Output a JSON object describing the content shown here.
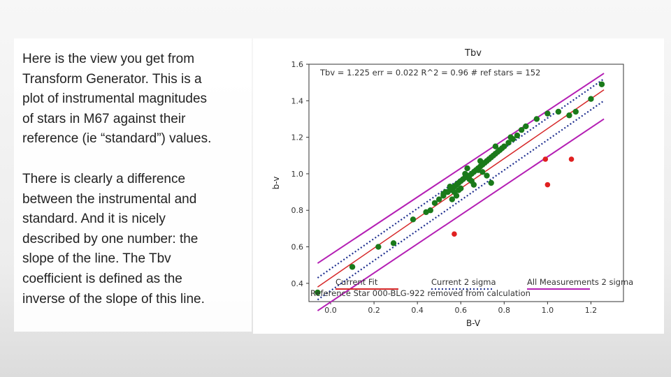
{
  "slide": {
    "paragraph_1": "Here is the view you get from\nTransform Generator. This is a\nplot of instrumental magnitudes\nof stars in M67 against their\nreference (ie “standard”) values.",
    "paragraph_2": "There is clearly a difference\nbetween the instrumental and\nstandard. And it is nicely\ndescribed by one number: the\nslope of the line. The Tbv\ncoefficient is defined as the\ninverse of the slope of this line."
  },
  "chart_data": {
    "type": "scatter",
    "title": "Tbv",
    "stats_annotation": "Tbv =  1.225 err = 0.022  R^2 = 0.96  # ref stars = 152",
    "xlabel": "B-V",
    "ylabel": "b-v",
    "xlim": [
      -0.1,
      1.35
    ],
    "ylim": [
      0.3,
      1.6
    ],
    "xticks": [
      "0.0",
      "0.2",
      "0.4",
      "0.6",
      "0.8",
      "1.0",
      "1.2"
    ],
    "yticks": [
      "0.4",
      "0.6",
      "0.8",
      "1.0",
      "1.2",
      "1.4",
      "1.6"
    ],
    "grid": false,
    "legend_placement": "bottom",
    "legend": [
      "Current Fit",
      "Current 2 sigma",
      "All Measurements 2 sigma"
    ],
    "removed_note": "Reference Star 000-BLG-922 removed from calculation",
    "colors": {
      "fit": "#d62728",
      "current_sigma": "#1f2f8f",
      "all_sigma": "#b41fb4",
      "points": "#1a7a1a",
      "rejected": "#e02020"
    },
    "series": [
      {
        "name": "Current Fit",
        "kind": "line",
        "x": [
          -0.06,
          1.26
        ],
        "y": [
          0.38,
          1.46
        ]
      },
      {
        "name": "Current 2 sigma",
        "kind": "dotted-line-pair",
        "upper": {
          "x": [
            -0.06,
            1.26
          ],
          "y": [
            0.43,
            1.52
          ]
        },
        "lower": {
          "x": [
            -0.06,
            1.26
          ],
          "y": [
            0.31,
            1.4
          ]
        }
      },
      {
        "name": "All Measurements 2 sigma",
        "kind": "line-pair",
        "upper": {
          "x": [
            -0.06,
            1.26
          ],
          "y": [
            0.51,
            1.55
          ]
        },
        "lower": {
          "x": [
            -0.06,
            1.26
          ],
          "y": [
            0.25,
            1.3
          ]
        }
      },
      {
        "name": "",
        "kind": "points",
        "x": [
          -0.06,
          0.1,
          0.22,
          0.29,
          0.38,
          0.44,
          0.46,
          0.48,
          0.5,
          0.52,
          0.53,
          0.54,
          0.55,
          0.56,
          0.57,
          0.58,
          0.59,
          0.6,
          0.61,
          0.62,
          0.63,
          0.64,
          0.65,
          0.66,
          0.67,
          0.68,
          0.69,
          0.7,
          0.71,
          0.72,
          0.73,
          0.74,
          0.75,
          0.76,
          0.77,
          0.78,
          0.79,
          0.8,
          0.82,
          0.84,
          0.86,
          0.88,
          0.9,
          0.95,
          1.0,
          1.05,
          1.1,
          1.13,
          1.2,
          1.25,
          0.55,
          0.6,
          0.65,
          0.58,
          0.62,
          0.68,
          0.72,
          0.56,
          0.66,
          0.78,
          0.83,
          0.59,
          0.64,
          0.7,
          0.74,
          0.52,
          0.63,
          0.69,
          0.76,
          0.57
        ],
        "y": [
          0.35,
          0.49,
          0.6,
          0.62,
          0.75,
          0.79,
          0.8,
          0.84,
          0.86,
          0.88,
          0.9,
          0.9,
          0.91,
          0.92,
          0.93,
          0.94,
          0.95,
          0.96,
          0.97,
          0.98,
          0.99,
          0.99,
          1.0,
          1.01,
          1.02,
          1.03,
          1.04,
          1.05,
          1.06,
          1.07,
          1.08,
          1.09,
          1.1,
          1.11,
          1.12,
          1.13,
          1.14,
          1.15,
          1.17,
          1.19,
          1.21,
          1.24,
          1.26,
          1.3,
          1.33,
          1.34,
          1.32,
          1.34,
          1.41,
          1.49,
          0.93,
          0.92,
          0.96,
          0.88,
          1.0,
          1.02,
          0.99,
          0.86,
          0.94,
          1.13,
          1.2,
          0.91,
          0.97,
          1.01,
          0.95,
          0.89,
          1.03,
          1.07,
          1.15,
          0.9
        ]
      },
      {
        "name": "",
        "kind": "rejected-points",
        "x": [
          0.57,
          0.99,
          1.0,
          1.11
        ],
        "y": [
          0.67,
          1.08,
          0.94,
          1.08
        ]
      }
    ]
  }
}
